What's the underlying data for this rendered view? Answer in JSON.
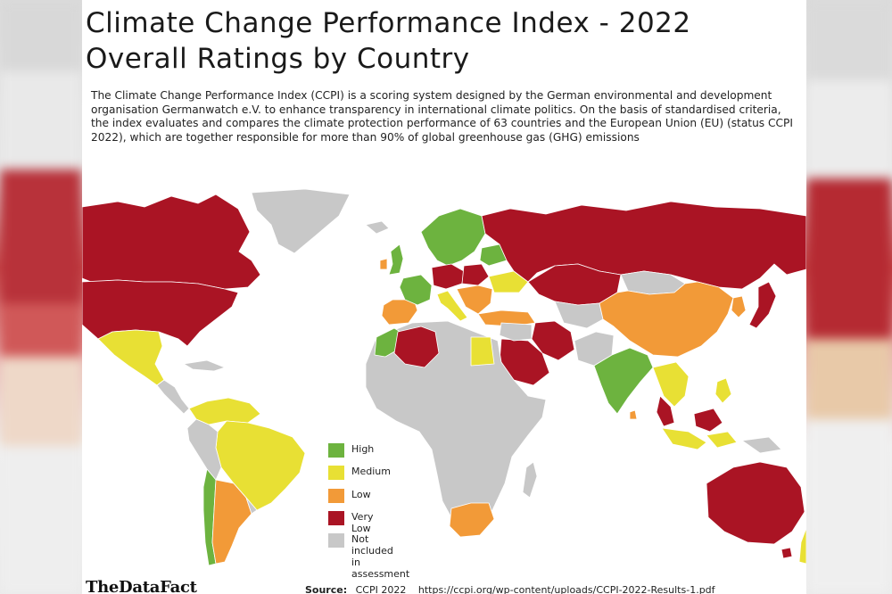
{
  "title_line1": "Climate Change Performance Index - 2022",
  "title_line2": "Overall Ratings by Country",
  "description": "The Climate Change Performance Index (CCPI) is a scoring system designed by the German environmental and development organisation Germanwatch e.V. to enhance transparency in international climate politics. On the basis of standardised criteria, the index evaluates and compares the climate protection performance of 63 countries and the European Union (EU) (status CCPI 2022), which are together responsible for more than 90% of global greenhouse gas (GHG) emissions",
  "colors": {
    "high": "#6db33f",
    "medium": "#e8e034",
    "low": "#f29a38",
    "very_low": "#aa1424",
    "not_included": "#c8c8c8"
  },
  "legend": {
    "high": "High",
    "medium": "Medium",
    "low": "Low",
    "very_low": "Very Low",
    "not_included_1": "Not included",
    "not_included_2": "in assessment"
  },
  "logo": "TheDataFact",
  "source": {
    "label": "Source:",
    "name": "CCPI 2022",
    "url": "https://ccpi.org/wp-content/uploads/CCPI-2022-Results-1.pdf"
  }
}
